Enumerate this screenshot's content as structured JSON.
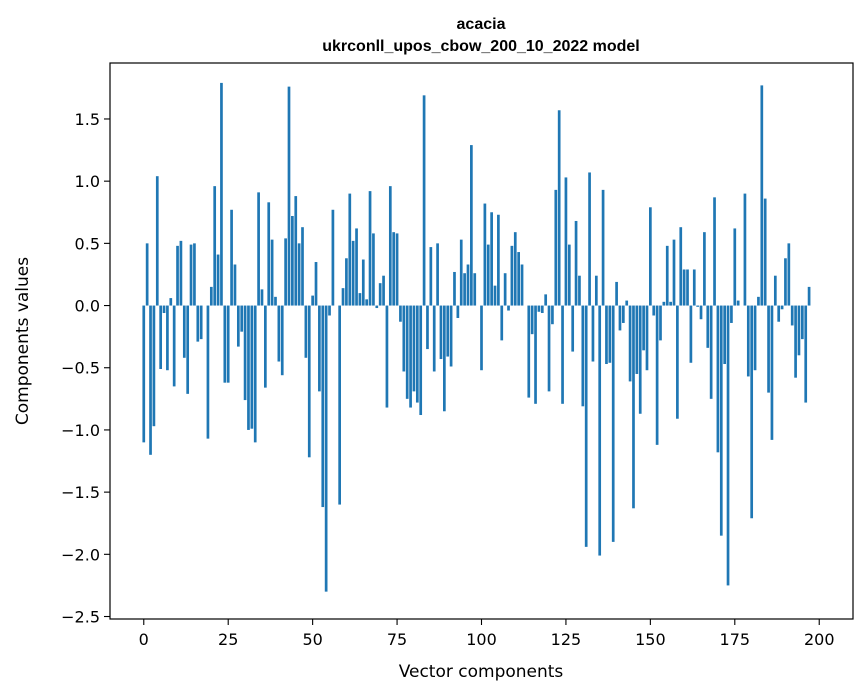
{
  "chart_data": {
    "type": "bar",
    "title": "acacia",
    "subtitle": "ukrconll_upos_cbow_200_10_2022 model",
    "xlabel": "Vector components",
    "ylabel": "Components values",
    "xlim": [
      -10,
      210
    ],
    "ylim": [
      -2.52,
      1.95
    ],
    "xticks": [
      0,
      25,
      50,
      75,
      100,
      125,
      150,
      175,
      200
    ],
    "yticks": [
      -2.5,
      -2.0,
      -1.5,
      -1.0,
      -0.5,
      0.0,
      0.5,
      1.0,
      1.5
    ],
    "ytick_labels": [
      "−2.5",
      "−2.0",
      "−1.5",
      "−1.0",
      "−0.5",
      "0.0",
      "0.5",
      "1.0",
      "1.5"
    ],
    "grid": false,
    "bar_color": "#1f77b4",
    "values": [
      -1.1,
      0.5,
      -1.2,
      -0.97,
      1.04,
      -0.51,
      -0.06,
      -0.52,
      0.06,
      -0.65,
      0.48,
      0.52,
      -0.42,
      -0.71,
      0.49,
      0.5,
      -0.29,
      -0.27,
      0.0,
      -1.07,
      0.15,
      0.96,
      0.41,
      1.79,
      -0.62,
      -0.62,
      0.77,
      0.33,
      -0.33,
      -0.21,
      -0.76,
      -1.0,
      -0.99,
      -1.1,
      0.91,
      0.13,
      -0.66,
      0.83,
      0.53,
      0.07,
      -0.45,
      -0.56,
      0.54,
      1.76,
      0.72,
      0.88,
      0.5,
      0.63,
      -0.42,
      -1.22,
      0.08,
      0.35,
      -0.69,
      -1.62,
      -2.3,
      -0.08,
      0.77,
      0.0,
      -1.6,
      0.14,
      0.38,
      0.9,
      0.52,
      0.62,
      0.1,
      0.37,
      0.05,
      0.92,
      0.58,
      -0.02,
      0.18,
      0.24,
      -0.82,
      0.96,
      0.59,
      0.58,
      -0.13,
      -0.53,
      -0.75,
      -0.82,
      -0.69,
      -0.78,
      -0.88,
      1.69,
      -0.35,
      0.47,
      -0.53,
      0.5,
      -0.43,
      -0.85,
      -0.41,
      -0.49,
      0.27,
      -0.1,
      0.53,
      0.26,
      0.33,
      1.29,
      0.26,
      0.0,
      -0.52,
      0.82,
      0.49,
      0.75,
      0.16,
      0.73,
      -0.28,
      0.26,
      -0.04,
      0.48,
      0.59,
      0.43,
      0.33,
      0.0,
      -0.74,
      -0.23,
      -0.79,
      -0.05,
      -0.06,
      0.09,
      -0.69,
      -0.15,
      0.93,
      1.57,
      -0.79,
      1.03,
      0.49,
      -0.37,
      0.68,
      0.24,
      -0.81,
      -1.94,
      1.07,
      -0.45,
      0.24,
      -2.01,
      0.93,
      -0.47,
      -0.46,
      -1.9,
      0.19,
      -0.2,
      -0.14,
      0.04,
      -0.61,
      -1.63,
      -0.55,
      -0.87,
      -0.36,
      -0.52,
      0.79,
      -0.08,
      -1.12,
      -0.28,
      0.03,
      0.48,
      0.03,
      0.53,
      -0.91,
      0.63,
      0.29,
      0.29,
      -0.46,
      0.29,
      -0.01,
      -0.11,
      0.59,
      -0.34,
      -0.75,
      0.87,
      -1.18,
      -1.85,
      -0.47,
      -2.25,
      -0.14,
      0.62,
      0.04,
      0.0,
      0.9,
      -0.57,
      -1.71,
      -0.52,
      0.07,
      1.77,
      0.86,
      -0.7,
      -1.08,
      0.24,
      -0.13,
      -0.03,
      0.38,
      0.5,
      -0.16,
      -0.58,
      -0.4,
      -0.27,
      -0.78,
      0.15
    ]
  }
}
